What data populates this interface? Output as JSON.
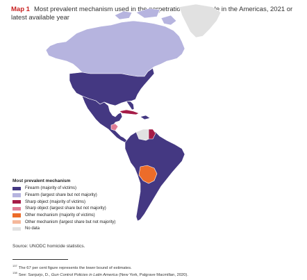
{
  "header": {
    "map_label": "Map 1",
    "title": "Most prevalent mechanism used in the perpetration of homicide in the Americas, 2021 or latest available year"
  },
  "legend": {
    "title": "Most prevalent mechanism",
    "items": [
      {
        "label": "Firearm (majority of victims)",
        "color": "#443882"
      },
      {
        "label": "Firearm (largest share but not majority)",
        "color": "#b6b4df"
      },
      {
        "label": "Sharp object (majority of victims)",
        "color": "#a51c47"
      },
      {
        "label": "Sharp object (largest share but not majority)",
        "color": "#e07d95"
      },
      {
        "label": "Other mechanism (majority of victims)",
        "color": "#ec6c2a"
      },
      {
        "label": "Other mechanism (largest share but not majority)",
        "color": "#f5b89b"
      },
      {
        "label": "No data",
        "color": "#e1e1e1"
      }
    ]
  },
  "regions": {
    "canada": "Firearm (largest share but not majority)",
    "united_states": "Firearm (majority of victims)",
    "mexico_central_america": "Firearm (majority of victims)",
    "cuba": "Sharp object (majority of victims)",
    "nicaragua": "Sharp object (largest share but not majority)",
    "venezuela": "No data",
    "guyana": "Sharp object (majority of victims)",
    "bolivia": "Other mechanism (majority of victims)",
    "greenland": "No data",
    "south_america_rest": "Firearm (majority of victims)"
  },
  "source": "Source: UNODC homicide statistics.",
  "footnotes": [
    {
      "number": "137",
      "text": "The 67 per cent figure represents the lower bound of estimates."
    },
    {
      "number": "138",
      "pre": "See: Sanjurjo, D., ",
      "italic": "Gun Control Policies in Latin America",
      "post": " (New York, Palgrave Macmillan, 2020)."
    }
  ]
}
